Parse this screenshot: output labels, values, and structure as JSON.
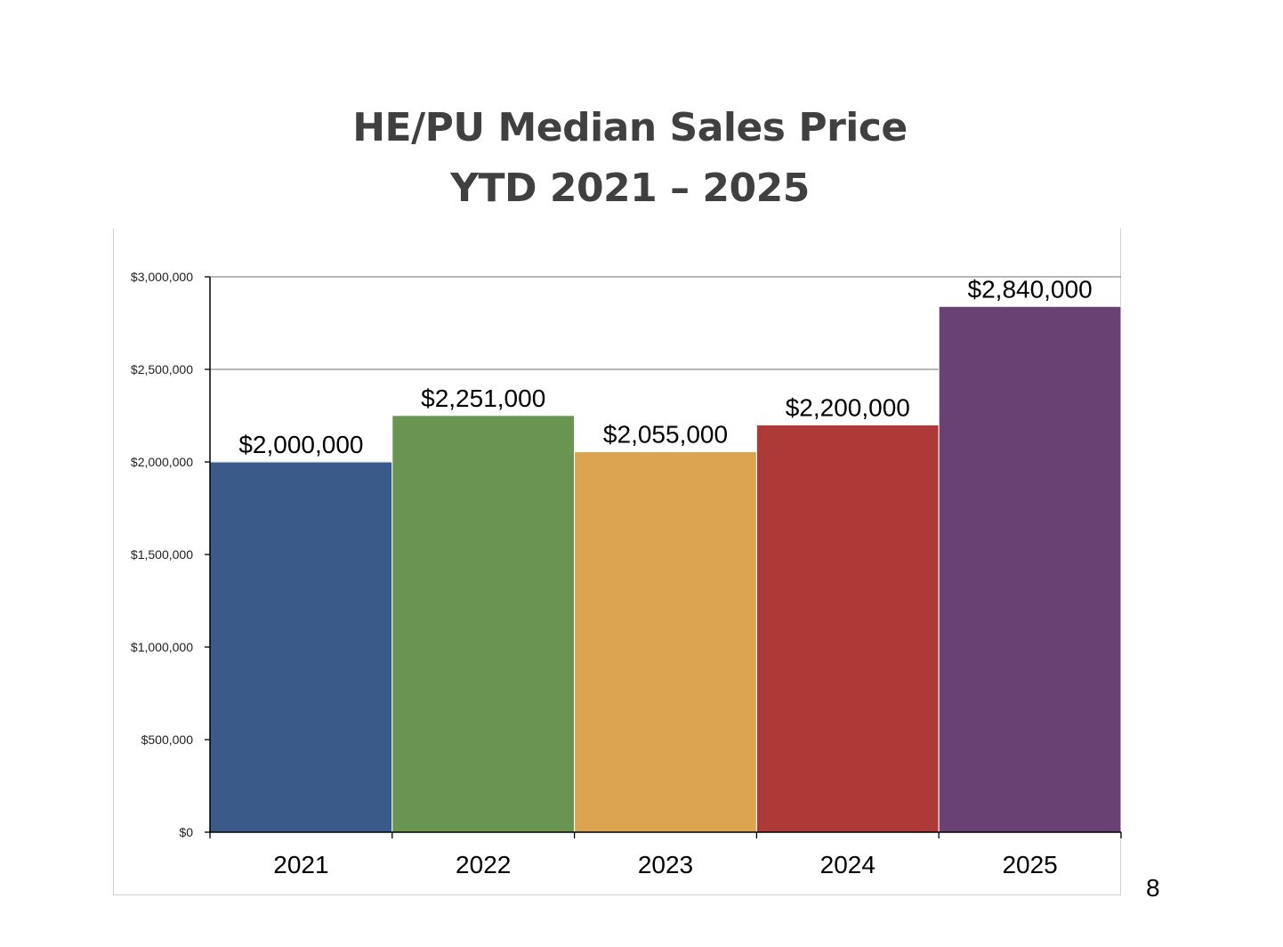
{
  "slide": {
    "page_number": "8"
  },
  "chart_data": {
    "type": "bar",
    "title": "HE/PU Median Sales Price",
    "subtitle": "YTD 2021 – 2025",
    "xlabel": "",
    "ylabel": "",
    "categories": [
      "2021",
      "2022",
      "2023",
      "2024",
      "2025"
    ],
    "values": [
      2000000,
      2251000,
      2055000,
      2200000,
      2840000
    ],
    "data_labels": [
      "$2,000,000",
      "$2,251,000",
      "$2,055,000",
      "$2,200,000",
      "$2,840,000"
    ],
    "colors": [
      "#3A5A8A",
      "#6A9452",
      "#DCA350",
      "#AE3A38",
      "#6A4173"
    ],
    "ylim": [
      0,
      3000000
    ],
    "yticks": [
      0,
      500000,
      1000000,
      1500000,
      2000000,
      2500000,
      3000000
    ],
    "ytick_labels": [
      "$0",
      "$500,000",
      "$1,000,000",
      "$1,500,000",
      "$2,000,000",
      "$2,500,000",
      "$3,000,000"
    ],
    "grid": true,
    "legend": "none"
  }
}
